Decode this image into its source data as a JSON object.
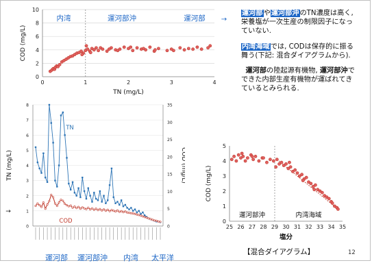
{
  "colors": {
    "red": "#c0392b",
    "red_fill": "#e06060",
    "blue": "#2e75b6",
    "label_blue": "#1c66c6"
  },
  "notes": {
    "p1": {
      "hl1": "運河部",
      "t1": "や",
      "hl2": "運河部沖",
      "t2": "のTN濃度は高く, 栄養塩が一次生産の制限因子になっていない."
    },
    "p2": {
      "hl1": "内湾海域",
      "t1": "では, CODは保存的に振る舞う(下記: 混合ダイアグラムから)."
    },
    "p3": {
      "b1": "運河部",
      "t1": "の陸起源有機物, ",
      "b2": "運河部沖",
      "t2": "でできた内部生産有機物が運ばれてきているとみられる."
    }
  },
  "bottom_labels": [
    "運河部",
    "運河部沖",
    "内湾",
    "太平洋"
  ],
  "mixing_title": "【混合ダイアグラム】",
  "page_number": "12",
  "chart_data": [
    {
      "type": "scatter",
      "xlabel": "TN (mg/L)",
      "ylabel": "COD (mg/L)",
      "xlim": [
        0,
        4
      ],
      "ylim": [
        0,
        10
      ],
      "xticks": [
        "0",
        "1",
        "2",
        "3",
        "4"
      ],
      "yticks": [
        "0",
        "2",
        "4",
        "6",
        "8",
        "10"
      ],
      "divider_x": 1,
      "region_labels": [
        "内湾",
        "運河部沖",
        "運河部"
      ],
      "arrow": "→",
      "x": [
        0.18,
        0.22,
        0.25,
        0.28,
        0.3,
        0.33,
        0.36,
        0.4,
        0.45,
        0.5,
        0.55,
        0.6,
        0.65,
        0.7,
        0.75,
        0.8,
        0.85,
        0.9,
        0.95,
        1.0,
        1.05,
        1.1,
        1.15,
        1.2,
        1.25,
        1.3,
        1.4,
        1.5,
        1.6,
        1.7,
        1.8,
        1.9,
        2.0,
        2.1,
        2.2,
        2.3,
        2.4,
        2.5,
        2.6,
        2.7,
        2.9,
        3.0,
        3.2,
        3.3,
        3.4,
        3.6,
        3.7,
        3.9,
        0.92,
        1.02,
        1.12,
        1.35,
        1.55,
        1.75,
        2.05,
        2.35,
        2.62,
        3.05,
        3.5,
        3.85
      ],
      "y": [
        0.8,
        1.0,
        1.2,
        1.1,
        1.4,
        1.6,
        1.5,
        1.8,
        2.2,
        2.4,
        2.6,
        2.8,
        3.0,
        3.1,
        3.3,
        3.5,
        3.6,
        3.8,
        3.5,
        3.9,
        4.1,
        3.8,
        4.2,
        4.0,
        4.3,
        3.9,
        4.1,
        3.8,
        4.3,
        4.0,
        4.1,
        4.4,
        4.2,
        3.9,
        4.3,
        4.1,
        4.0,
        4.4,
        3.8,
        4.2,
        3.9,
        4.1,
        4.3,
        4.0,
        4.2,
        4.4,
        4.1,
        4.6,
        3.3,
        4.6,
        3.6,
        4.3,
        4.1,
        3.9,
        4.4,
        4.2,
        4.0,
        3.9,
        4.1,
        4.3
      ]
    },
    {
      "type": "line",
      "ylabel_left": "TN (mg/L)",
      "ylabel_right": "COD (mg/L)",
      "ylim_left": [
        0,
        8
      ],
      "ylim_right": [
        0,
        35
      ],
      "yticks_left": [
        "0",
        "1",
        "2",
        "3",
        "4",
        "5",
        "6",
        "7",
        "8"
      ],
      "yticks_right": [
        "0",
        "5",
        "10",
        "15",
        "20",
        "25",
        "30",
        "35"
      ],
      "marker_arrow": "→",
      "series": [
        {
          "name": "TN",
          "axis": "left",
          "values": [
            5.2,
            4.2,
            3.8,
            3.5,
            4.8,
            3.2,
            2.9,
            8.0,
            6.8,
            5.5,
            3.0,
            2.6,
            4.0,
            7.3,
            7.5,
            6.0,
            4.5,
            2.8,
            2.4,
            2.9,
            2.2,
            2.0,
            2.5,
            1.9,
            3.2,
            2.3,
            1.8,
            2.5,
            2.0,
            1.6,
            2.2,
            1.8,
            1.7,
            2.3,
            1.6,
            2.0,
            1.5,
            1.7,
            2.7,
            3.8,
            1.9,
            1.5,
            1.6,
            1.4,
            1.7,
            1.3,
            1.4,
            1.2,
            1.1,
            1.2,
            1.0,
            1.1,
            0.9,
            1.0,
            0.8,
            0.9,
            0.7,
            0.6,
            0.5,
            0.45,
            0.4,
            0.35,
            0.3,
            0.3,
            0.25
          ]
        },
        {
          "name": "COD",
          "axis": "right",
          "values": [
            5.8,
            6.5,
            6.0,
            5.5,
            6.8,
            5.0,
            6.2,
            7.2,
            9.0,
            8.3,
            6.5,
            5.8,
            6.8,
            7.6,
            7.3,
            6.4,
            6.0,
            5.7,
            5.9,
            5.3,
            5.6,
            5.2,
            5.5,
            5.0,
            5.4,
            5.1,
            4.9,
            5.3,
            4.8,
            5.1,
            4.7,
            5.0,
            4.6,
            4.9,
            4.5,
            4.8,
            4.4,
            4.7,
            4.3,
            4.6,
            4.4,
            4.2,
            4.5,
            4.1,
            4.3,
            4.0,
            4.2,
            3.9,
            3.8,
            3.7,
            3.6,
            3.5,
            3.3,
            3.2,
            3.0,
            2.8,
            2.6,
            2.4,
            2.2,
            2.0,
            1.8,
            1.6,
            1.5,
            1.3,
            1.2
          ]
        }
      ]
    },
    {
      "type": "scatter",
      "xlabel": "塩分",
      "ylabel": "COD (mg/L)",
      "xlim": [
        25,
        35
      ],
      "ylim": [
        0,
        5
      ],
      "xticks": [
        "25",
        "26",
        "27",
        "28",
        "29",
        "30",
        "31",
        "32",
        "33",
        "34",
        "35"
      ],
      "yticks": [
        "0",
        "1",
        "2",
        "3",
        "4",
        "5"
      ],
      "divider_x": 29,
      "region_labels": [
        "運河部沖",
        "内湾海域"
      ],
      "trend_line": [
        [
          29.2,
          4.1
        ],
        [
          34.6,
          0.8
        ]
      ],
      "x": [
        25.2,
        25.4,
        25.6,
        25.8,
        26.0,
        26.2,
        26.4,
        26.6,
        26.9,
        27.1,
        27.3,
        27.6,
        27.9,
        28.3,
        28.6,
        28.9,
        29.2,
        29.4,
        29.6,
        29.8,
        30.0,
        30.2,
        30.4,
        30.6,
        30.8,
        31.0,
        31.2,
        31.4,
        31.6,
        31.8,
        32.0,
        32.2,
        32.4,
        32.6,
        32.8,
        33.0,
        33.2,
        33.4,
        33.6,
        33.8,
        34.0,
        34.1,
        34.3,
        34.5,
        34.6,
        26.1,
        27.0,
        28.0,
        29.1,
        30.3,
        31.5,
        32.5
      ],
      "y": [
        4.1,
        4.3,
        4.0,
        4.4,
        4.2,
        4.3,
        4.0,
        4.2,
        4.4,
        4.1,
        4.3,
        4.0,
        4.2,
        3.9,
        4.1,
        4.0,
        4.1,
        3.8,
        3.9,
        3.7,
        3.8,
        3.5,
        3.6,
        3.3,
        3.4,
        3.2,
        3.0,
        3.1,
        2.8,
        2.9,
        2.6,
        2.5,
        2.3,
        2.4,
        2.1,
        2.0,
        1.9,
        1.7,
        1.6,
        1.5,
        1.3,
        1.2,
        1.0,
        0.9,
        0.8,
        4.5,
        4.3,
        4.2,
        3.6,
        3.9,
        2.7,
        2.1
      ]
    }
  ]
}
